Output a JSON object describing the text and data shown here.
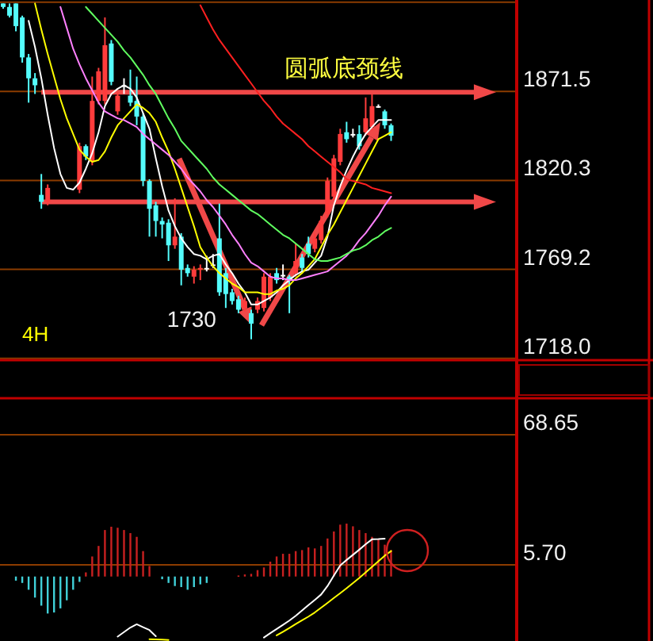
{
  "chart_data": [
    {
      "type": "candlestick",
      "categories": [
        null,
        null,
        null,
        null,
        null,
        null,
        null,
        null,
        null,
        null,
        null,
        null,
        null,
        null,
        null,
        null,
        null,
        null,
        null,
        null,
        null,
        null,
        null,
        null,
        null,
        null,
        null,
        null,
        null,
        null,
        null,
        null,
        null,
        null,
        null,
        null,
        null,
        null,
        null,
        null,
        null,
        null,
        null,
        null,
        null,
        null,
        null,
        null,
        null,
        null,
        null,
        null,
        null,
        null,
        null,
        null,
        null,
        null,
        null,
        null,
        null,
        null,
        null,
        null,
        null,
        null,
        null,
        null,
        null,
        null,
        null,
        null,
        null,
        null,
        null,
        null,
        null,
        null,
        null,
        null,
        null
      ],
      "ohlc": [
        [
          1922,
          1922,
          1919,
          1920
        ],
        [
          1920,
          1922,
          1914,
          1915
        ],
        [
          1922,
          1922,
          1906,
          1909
        ],
        [
          1914,
          1915,
          1888,
          1891
        ],
        [
          1891,
          1893,
          1865,
          1879
        ],
        [
          1879,
          1882,
          1870,
          1875
        ],
        [
          1812,
          1824,
          1804,
          1808
        ],
        [
          1808,
          1818,
          1806,
          1816
        ],
        null,
        null,
        null,
        null,
        [
          1815,
          1842,
          1813,
          1840
        ],
        [
          1840,
          1841,
          1832,
          1834
        ],
        [
          1831,
          1880,
          1829,
          1866
        ],
        [
          1866,
          1885,
          1864,
          1883
        ],
        [
          1866,
          1914,
          1864,
          1898
        ],
        [
          1899,
          1901,
          1875,
          1877
        ],
        [
          1860,
          1871,
          1858,
          1869
        ],
        [
          1875,
          1879,
          1870,
          1875
        ],
        [
          1869,
          1884,
          1863,
          1865
        ],
        [
          1866,
          1880,
          1852,
          1857
        ],
        [
          1857,
          1859,
          1817,
          1820
        ],
        [
          1820,
          1821,
          1788,
          1804
        ],
        [
          1806,
          1808,
          1788,
          1797
        ],
        [
          1797,
          1799,
          1787,
          1795
        ],
        [
          1796,
          1798,
          1774,
          1783
        ],
        [
          1783,
          1810,
          1781,
          1788
        ],
        [
          1788,
          1790,
          1760,
          1769
        ],
        [
          1770,
          1772,
          1765,
          1767
        ],
        [
          1765,
          1771,
          1761,
          1769
        ],
        [
          1769,
          1772,
          1763,
          1770
        ],
        [
          1770,
          1777,
          1768,
          1770
        ],
        [
          1772,
          1778,
          1770,
          1772
        ],
        [
          1787,
          1807,
          1754,
          1756
        ],
        [
          1767,
          1770,
          1747,
          1755
        ],
        [
          1756,
          1758,
          1749,
          1751
        ],
        [
          1752,
          1754,
          1744,
          1746
        ],
        [
          1747,
          1753,
          1745,
          1751
        ],
        [
          1744,
          1746,
          1729,
          1738
        ],
        [
          1746,
          1753,
          1744,
          1751
        ],
        [
          1747,
          1767,
          1745,
          1765
        ],
        [
          1753,
          1767,
          1751,
          1765
        ],
        [
          1767,
          1770,
          1761,
          1763
        ],
        [
          1766,
          1772,
          1763,
          1766
        ],
        [
          1765,
          1766,
          1744,
          1763
        ],
        [
          1767,
          1784,
          1765,
          1774
        ],
        [
          1776,
          1778,
          1768,
          1770
        ],
        [
          1784,
          1788,
          1776,
          1778
        ],
        [
          1781,
          1790,
          1779,
          1787
        ],
        [
          1786,
          1800,
          1784,
          1797
        ],
        [
          1801,
          1822,
          1799,
          1820
        ],
        [
          1811,
          1835,
          1809,
          1833
        ],
        [
          1831,
          1850,
          1829,
          1847
        ],
        [
          1848,
          1854,
          1842,
          1844
        ],
        [
          1847,
          1850,
          1845,
          1847
        ],
        [
          1847,
          1852,
          1838,
          1840
        ],
        [
          1848,
          1868,
          1846,
          1856
        ],
        [
          1851,
          1870,
          1849,
          1863
        ],
        [
          1863,
          1864,
          1862,
          1863
        ],
        [
          1860,
          1861,
          1850,
          1852
        ],
        [
          1852,
          1853,
          1843,
          1846
        ],
        null,
        null,
        null,
        null,
        null,
        null,
        null,
        null,
        null,
        null,
        null,
        null,
        null,
        null,
        null,
        null,
        null,
        null,
        null
      ],
      "series": [
        {
          "type": "line",
          "color": "#ffffff",
          "values": [
            null,
            null,
            null,
            null,
            1912,
            1897,
            1879,
            1858,
            1839,
            1824,
            1816,
            1815,
            1819,
            1827,
            1836,
            1848,
            1863,
            1870,
            1873,
            1875,
            1873,
            1868,
            1859,
            1850,
            1833,
            1817,
            1803,
            1794,
            1787,
            1782,
            1778,
            1777,
            1775,
            1777,
            1778,
            1772,
            1767,
            1761,
            1756,
            1749,
            1749,
            1751,
            1753,
            1756,
            1760,
            1763,
            1766,
            1768,
            1769,
            1773,
            1777,
            1788,
            1806,
            1817,
            1826,
            1834,
            1841,
            1847,
            1851,
            1855,
            1855,
            1855,
            null,
            null,
            null,
            null,
            null,
            null,
            null,
            null,
            null,
            null,
            null,
            null,
            null,
            null,
            null,
            null,
            null,
            null,
            null
          ]
        },
        {
          "type": "line",
          "color": "#ffff00",
          "values": [
            null,
            null,
            null,
            null,
            null,
            1922,
            1907,
            1893,
            1880,
            1867,
            1856,
            1847,
            1838,
            1834,
            1831,
            1832,
            1837,
            1845,
            1852,
            1856,
            1860,
            1864,
            1862,
            1859,
            1854,
            1845,
            1837,
            1827,
            1816,
            1805,
            1794,
            1782,
            1776,
            1771,
            1767,
            1764,
            1761,
            1759,
            1756,
            1756,
            1756,
            1755,
            1755,
            1757,
            1758,
            1760,
            1764,
            1767,
            1771,
            1775,
            1782,
            1789,
            1795,
            1802,
            1809,
            1816,
            1823,
            1830,
            1837,
            1844,
            1846,
            1848,
            null,
            null,
            null,
            null,
            null,
            null,
            null,
            null,
            null,
            null,
            null,
            null,
            null,
            null,
            null,
            null,
            null,
            null,
            null
          ]
        },
        {
          "type": "line",
          "color": "#ff80ff",
          "values": [
            null,
            null,
            null,
            null,
            null,
            null,
            null,
            null,
            null,
            1920,
            1908,
            1896,
            1887,
            1879,
            1872,
            1865,
            1860,
            1858,
            1856,
            1855,
            1853,
            1851,
            1847,
            1844,
            1841,
            1838,
            1835,
            1831,
            1827,
            1822,
            1818,
            1814,
            1809,
            1805,
            1800,
            1795,
            1789,
            1784,
            1778,
            1773,
            1771,
            1768,
            1765,
            1764,
            1764,
            1763,
            1763,
            1764,
            1765,
            1766,
            1767,
            1768,
            1771,
            1774,
            1777,
            1781,
            1786,
            1790,
            1795,
            1800,
            1806,
            1811,
            null,
            null,
            null,
            null,
            null,
            null,
            null,
            null,
            null,
            null,
            null,
            null,
            null,
            null,
            null,
            null,
            null,
            null,
            null
          ]
        },
        {
          "type": "line",
          "color": "#60ff60",
          "values": [
            null,
            null,
            null,
            null,
            null,
            null,
            null,
            null,
            null,
            null,
            null,
            null,
            null,
            1920,
            1916,
            1912,
            1908,
            1904,
            1900,
            1895,
            1891,
            1886,
            1881,
            1875,
            1870,
            1863,
            1856,
            1850,
            1843,
            1839,
            1835,
            1831,
            1827,
            1822,
            1818,
            1815,
            1812,
            1809,
            1806,
            1803,
            1801,
            1798,
            1795,
            1792,
            1789,
            1787,
            1784,
            1781,
            1778,
            1775,
            1774,
            1774,
            1775,
            1776,
            1778,
            1780,
            1781,
            1783,
            1786,
            1788,
            1791,
            1793,
            null,
            null,
            null,
            null,
            null,
            null,
            null,
            null,
            null,
            null,
            null,
            null,
            null,
            null,
            null,
            null,
            null,
            null,
            null
          ]
        },
        {
          "type": "line",
          "color": "#ff2020",
          "values": [
            null,
            null,
            null,
            null,
            null,
            null,
            null,
            null,
            null,
            null,
            null,
            null,
            null,
            null,
            null,
            null,
            null,
            null,
            null,
            null,
            null,
            null,
            null,
            null,
            null,
            null,
            null,
            null,
            null,
            null,
            null,
            1921,
            1914,
            1907,
            1901,
            1896,
            1891,
            1886,
            1881,
            1876,
            1871,
            1866,
            1862,
            1857,
            1853,
            1850,
            1847,
            1844,
            1840,
            1837,
            1834,
            1831,
            1828,
            1825,
            1821,
            1820,
            1819,
            1818,
            1816,
            1815,
            1814,
            1813,
            null,
            null,
            null,
            null,
            null,
            null,
            null,
            null,
            null,
            null,
            null,
            null,
            null,
            null,
            null,
            null,
            null,
            null,
            null
          ]
        }
      ],
      "ylim": [
        1717,
        1924
      ],
      "yticks": [
        {
          "value": 1922.7,
          "label": null
        },
        1871.5,
        1820.3,
        1769.2,
        {
          "value": 1718,
          "label": "1718.0"
        }
      ],
      "tick_labels": "y",
      "grid": "y",
      "ref_lines": [
        {
          "axis": "y",
          "value": 1871,
          "label": "圆弧底颈线",
          "color": "#f04848"
        },
        {
          "axis": "y",
          "value": 1808,
          "color": "#f04848"
        }
      ],
      "annotations": [
        "1730",
        "4H"
      ]
    },
    {
      "type": "bar",
      "categories": [
        null,
        null,
        null,
        null,
        null,
        null,
        null,
        null,
        null,
        null,
        null,
        null,
        null,
        null,
        null,
        null,
        null,
        null,
        null,
        null,
        null,
        null,
        null,
        null,
        null,
        null,
        null,
        null,
        null,
        null,
        null,
        null,
        null,
        null,
        null,
        null,
        null,
        null,
        null,
        null,
        null,
        null,
        null,
        null,
        null,
        null,
        null,
        null,
        null,
        null,
        null,
        null,
        null,
        null,
        null,
        null,
        null,
        null,
        null,
        null,
        null,
        null,
        null,
        null,
        null,
        null,
        null,
        null,
        null,
        null,
        null,
        null,
        null,
        null,
        null,
        null,
        null,
        null,
        null,
        null,
        null
      ],
      "series": [
        {
          "type": "bar",
          "values": [
            null,
            null,
            -2.0,
            -3.1,
            -6.4,
            -10.2,
            -14.1,
            -17.9,
            -17.4,
            -15.4,
            -11.5,
            -6.4,
            -2.6,
            2.0,
            9.7,
            14.8,
            22.5,
            24.1,
            23.6,
            22.5,
            21.0,
            19.2,
            12.3,
            5.1,
            null,
            -1.3,
            -3.1,
            -4.6,
            -5.1,
            -6.4,
            -5.1,
            -3.8,
            -3.1,
            null,
            null,
            null,
            null,
            0.5,
            1.0,
            1.3,
            3.1,
            4.4,
            7.2,
            9.7,
            11.0,
            11.0,
            12.3,
            12.8,
            14.1,
            13.6,
            14.8,
            18.4,
            21.8,
            25.1,
            25.6,
            24.3,
            22.5,
            21.0,
            19.2,
            17.9,
            15.4,
            12.8,
            null,
            null,
            null,
            null,
            null,
            null,
            null,
            null,
            null,
            null,
            null,
            null,
            null,
            null,
            null,
            null,
            null,
            null,
            null
          ],
          "colors": [
            null,
            null,
            "#40d0d8",
            "#40d0d8",
            "#40d0d8",
            "#40d0d8",
            "#40d0d8",
            "#40d0d8",
            "#40d0d8",
            "#40d0d8",
            "#40d0d8",
            "#40d0d8",
            "#40d0d8",
            "#c82020",
            "#c82020",
            "#c82020",
            "#c82020",
            "#c82020",
            "#c82020",
            "#c82020",
            "#c82020",
            "#c82020",
            "#c82020",
            "#c82020",
            null,
            "#40d0d8",
            "#40d0d8",
            "#40d0d8",
            "#40d0d8",
            "#40d0d8",
            "#40d0d8",
            "#40d0d8",
            "#40d0d8",
            null,
            null,
            null,
            null,
            "#c82020",
            "#c82020",
            "#c82020",
            "#c82020",
            "#c82020",
            "#c82020",
            "#c82020",
            "#c82020",
            "#c82020",
            "#c82020",
            "#c82020",
            "#c82020",
            "#c82020",
            "#c82020",
            "#c82020",
            "#c82020",
            "#c82020",
            "#c82020",
            "#c82020",
            "#c82020",
            "#c82020",
            "#c82020",
            "#c82020",
            "#c82020",
            "#c82020",
            null,
            null,
            null,
            null,
            null,
            null,
            null,
            null,
            null,
            null,
            null,
            null,
            null,
            null,
            null,
            null,
            null,
            null,
            null
          ]
        },
        {
          "type": "line",
          "color": "#ffffff",
          "values": [
            null,
            null,
            null,
            null,
            null,
            null,
            null,
            null,
            null,
            null,
            null,
            null,
            null,
            null,
            null,
            null,
            null,
            null,
            -29.1,
            -26.9,
            -24.7,
            -23.1,
            -24.5,
            -25.9,
            -28.9,
            null,
            null,
            null,
            null,
            null,
            null,
            null,
            null,
            null,
            null,
            null,
            null,
            null,
            null,
            null,
            null,
            -29.5,
            -27.4,
            -25.4,
            -23.4,
            -21.3,
            -19.0,
            -16.4,
            -13.8,
            -11.3,
            -8.7,
            -4.6,
            0.5,
            5.4,
            8.0,
            10.5,
            13.0,
            15.6,
            18.0,
            18.1,
            18.3,
            null,
            null,
            null,
            null,
            null,
            null,
            null,
            null,
            null,
            null,
            null,
            null,
            null,
            null,
            null,
            null,
            null,
            null,
            null,
            null
          ]
        },
        {
          "type": "line",
          "color": "#ffff00",
          "values": [
            null,
            null,
            null,
            null,
            null,
            null,
            null,
            null,
            null,
            null,
            null,
            null,
            null,
            null,
            null,
            null,
            null,
            null,
            null,
            null,
            null,
            null,
            null,
            -30.3,
            -30.4,
            -30.5,
            -30.7,
            null,
            null,
            null,
            null,
            null,
            null,
            null,
            null,
            null,
            null,
            null,
            null,
            null,
            null,
            null,
            null,
            -28.5,
            -26.7,
            -24.9,
            -23.0,
            -21.2,
            -19.4,
            -17.4,
            -15.1,
            -12.8,
            -10.4,
            -8.1,
            -5.7,
            -3.2,
            -0.7,
            2.0,
            4.7,
            7.4,
            10.1,
            12.3,
            null,
            null,
            null,
            null,
            null,
            null,
            null,
            null,
            null,
            null,
            null,
            null,
            null,
            null,
            null,
            null,
            null,
            null,
            null
          ]
        }
      ],
      "ylim": [
        -31.2,
        85.5
      ],
      "yticks": [
        68.65,
        {
          "value": 5.7,
          "label": "5.70"
        }
      ],
      "tick_labels": "y",
      "grid": "y"
    }
  ]
}
